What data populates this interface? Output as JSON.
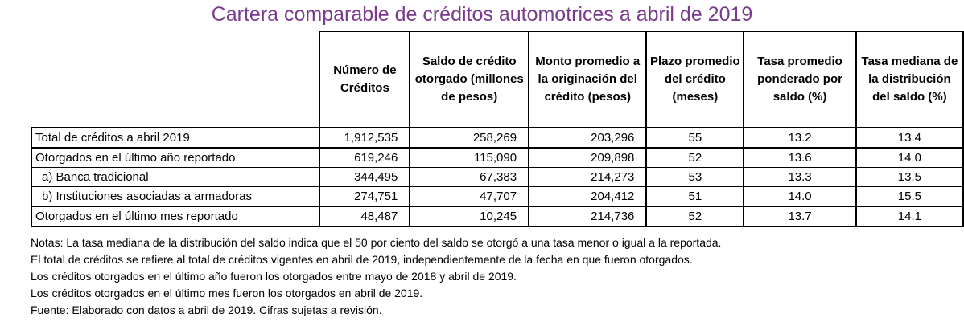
{
  "title": "Cartera comparable de créditos automotrices a abril de 2019",
  "headers": [
    "",
    "Número de Créditos",
    "Saldo de crédito otorgado (millones de pesos)",
    "Monto promedio a la originación del crédito (pesos)",
    "Plazo promedio del crédito (meses)",
    "Tasa promedio ponderado por saldo (%)",
    "Tasa mediana de la distribución del saldo (%)"
  ],
  "rows": [
    [
      "Total de créditos a abril  2019",
      "1,912,535",
      "258,269",
      "203,296",
      "55",
      "13.2",
      "13.4"
    ],
    [
      "Otorgados en el último año reportado",
      "619,246",
      "115,090",
      "209,898",
      "52",
      "13.6",
      "14.0"
    ],
    [
      "  a) Banca tradicional",
      "344,495",
      "67,383",
      "214,273",
      "53",
      "13.3",
      "13.5"
    ],
    [
      "  b) Instituciones asociadas a armadoras",
      "274,751",
      "47,707",
      "204,412",
      "51",
      "14.0",
      "15.5"
    ],
    [
      "Otorgados en el último mes reportado",
      "48,487",
      "10,245",
      "214,736",
      "52",
      "13.7",
      "14.1"
    ]
  ],
  "notes": [
    "Notas: La tasa mediana de la distribución del saldo indica que el 50 por ciento del saldo se otorgó a una tasa menor o igual a la reportada.",
    "El total de créditos se refiere al total de créditos vigentes en abril de 2019, independientemente de la fecha en que fueron otorgados.",
    "Los créditos otorgados en el último año fueron los otorgados entre mayo de 2018 y abril de 2019.",
    "Los créditos otorgados en el último mes fueron los otorgados en abril de 2019.",
    "Fuente: Elaborado con datos a abril de 2019. Cifras sujetas a revisión."
  ]
}
